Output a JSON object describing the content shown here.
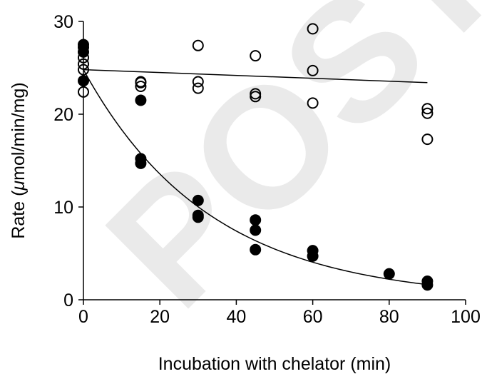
{
  "watermark": "POSTPR",
  "chart_data": {
    "type": "scatter",
    "title": "",
    "xlabel": "Incubation with chelator (min)",
    "ylabel_prefix": "Rate (",
    "ylabel_mu": "μ",
    "ylabel_suffix": "mol/min/mg)",
    "xlim": [
      0,
      100
    ],
    "ylim": [
      0,
      30
    ],
    "xticks": [
      0,
      20,
      40,
      60,
      80,
      100
    ],
    "yticks": [
      0,
      10,
      20,
      30
    ],
    "grid": false,
    "legend": "none",
    "series": [
      {
        "marker": "open-circle",
        "color": "#000000",
        "points": [
          [
            0,
            22.4
          ],
          [
            0,
            24.8
          ],
          [
            0,
            25.4
          ],
          [
            0,
            26.1
          ],
          [
            15,
            23.0
          ],
          [
            15,
            23.4
          ],
          [
            15,
            23.5
          ],
          [
            30,
            22.8
          ],
          [
            30,
            23.5
          ],
          [
            30,
            27.4
          ],
          [
            45,
            21.9
          ],
          [
            45,
            22.2
          ],
          [
            45,
            26.3
          ],
          [
            60,
            21.2
          ],
          [
            60,
            24.7
          ],
          [
            60,
            29.2
          ],
          [
            90,
            17.3
          ],
          [
            90,
            20.1
          ],
          [
            90,
            20.6
          ]
        ],
        "fit": {
          "kind": "linear",
          "x": [
            0,
            90
          ],
          "y": [
            24.8,
            23.4
          ]
        }
      },
      {
        "marker": "filled-circle",
        "color": "#000000",
        "points": [
          [
            0,
            23.6
          ],
          [
            0,
            26.7
          ],
          [
            0,
            27.2
          ],
          [
            0,
            27.5
          ],
          [
            15,
            14.7
          ],
          [
            15,
            15.2
          ],
          [
            15,
            21.5
          ],
          [
            30,
            8.9
          ],
          [
            30,
            9.1
          ],
          [
            30,
            10.7
          ],
          [
            45,
            5.4
          ],
          [
            45,
            7.5
          ],
          [
            45,
            8.6
          ],
          [
            60,
            4.7
          ],
          [
            60,
            5.3
          ],
          [
            80,
            2.8
          ],
          [
            90,
            1.6
          ],
          [
            90,
            2.0
          ]
        ],
        "fit": {
          "kind": "exponential",
          "x0": 0,
          "x1": 90,
          "a": 24.8,
          "k": 0.0302
        }
      }
    ]
  }
}
